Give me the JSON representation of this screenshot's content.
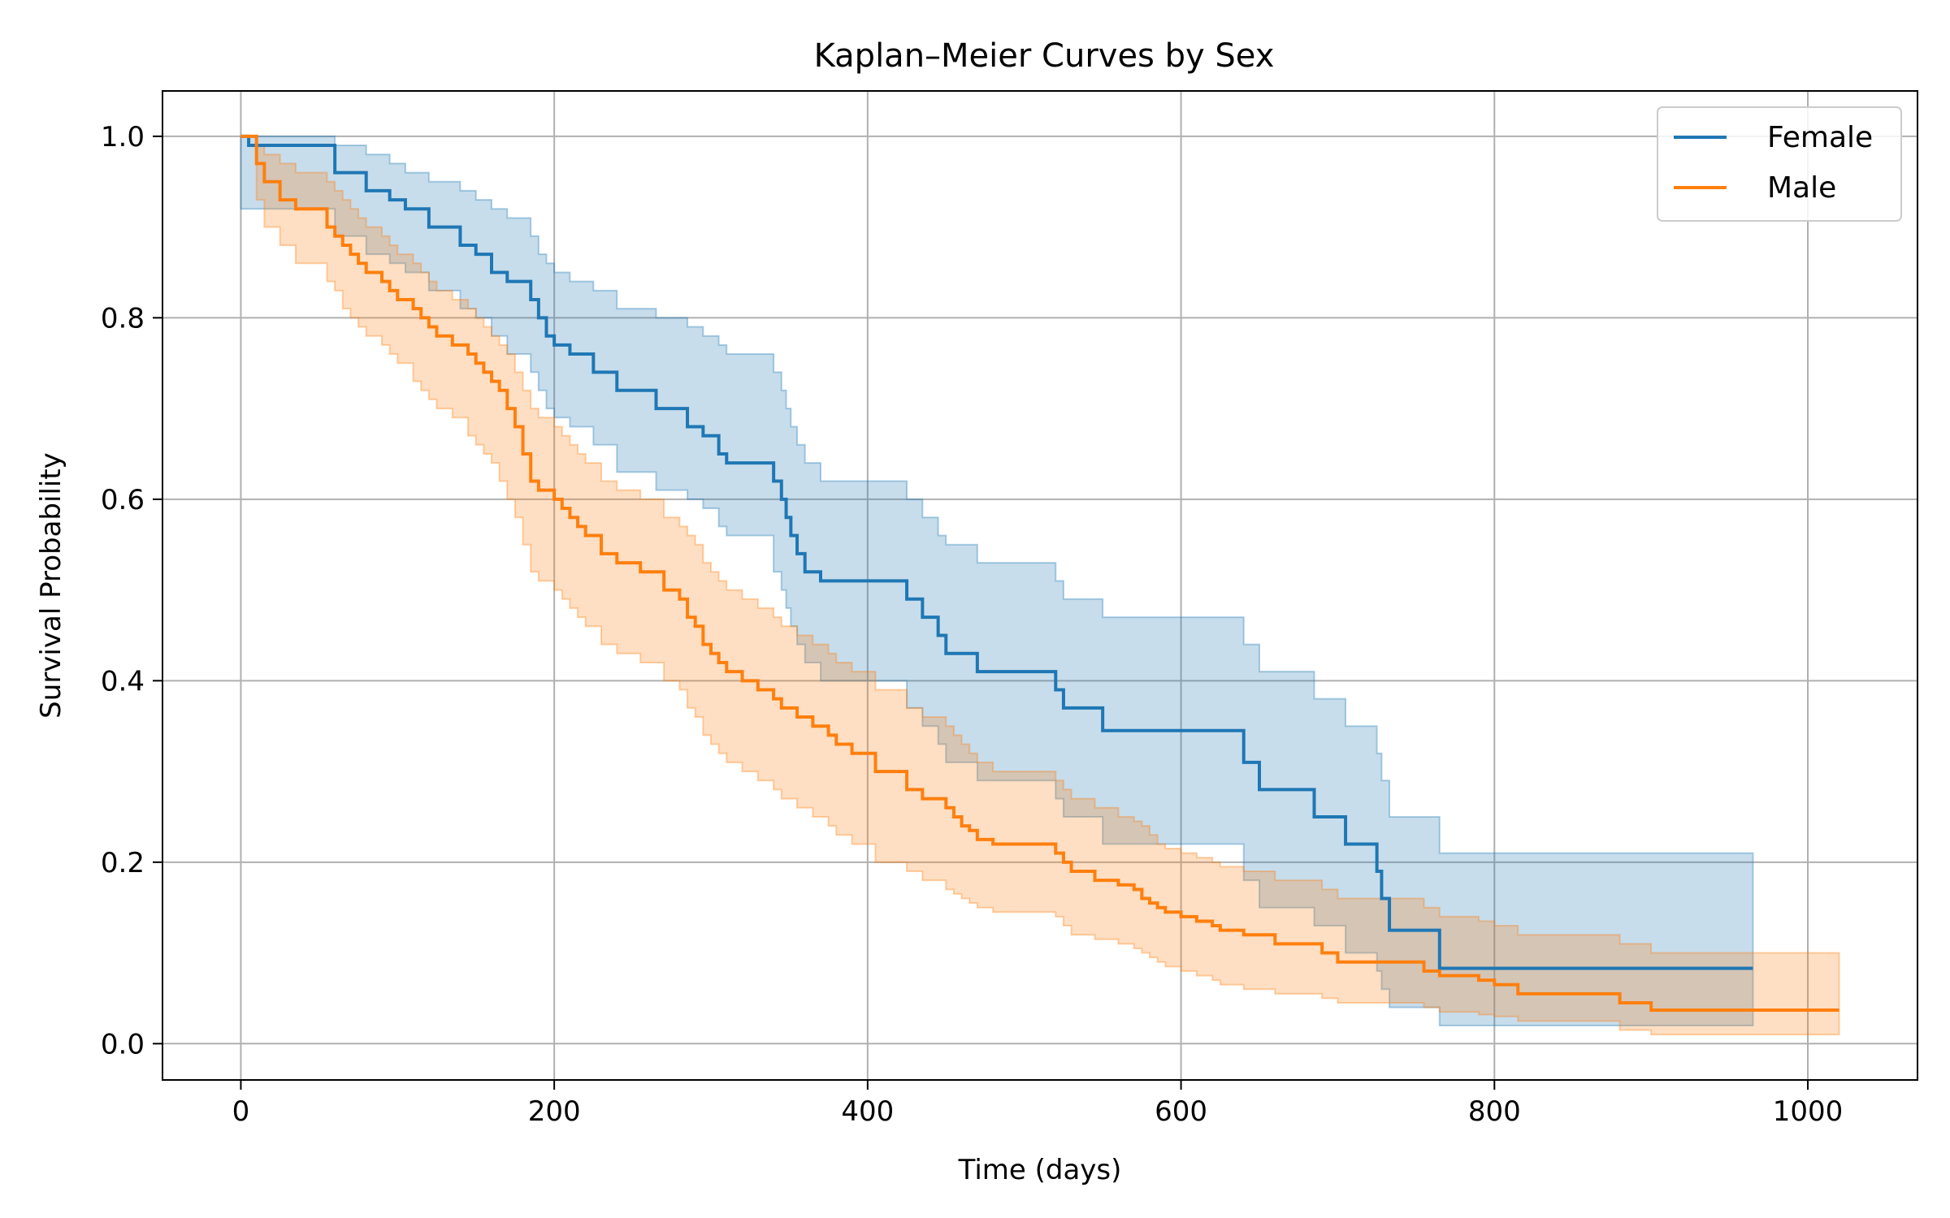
{
  "chart_data": {
    "type": "line",
    "title": "Kaplan–Meier Curves by Sex",
    "xlabel": "Time (days)",
    "ylabel": "Survival Probability",
    "xlim": [
      -50,
      1070
    ],
    "ylim": [
      -0.04,
      1.05
    ],
    "xticks": [
      0,
      200,
      400,
      600,
      800,
      1000
    ],
    "xtick_labels": [
      "0",
      "200",
      "400",
      "600",
      "800",
      "1000"
    ],
    "yticks": [
      0.0,
      0.2,
      0.4,
      0.6,
      0.8,
      1.0
    ],
    "ytick_labels": [
      "0.0",
      "0.2",
      "0.4",
      "0.6",
      "0.8",
      "1.0"
    ],
    "grid": true,
    "legend_position": "top-right",
    "step": "post",
    "series": [
      {
        "name": "Female",
        "color": "#1f77b4",
        "x": [
          0,
          5,
          60,
          80,
          95,
          105,
          120,
          140,
          150,
          160,
          170,
          185,
          190,
          195,
          200,
          210,
          225,
          240,
          265,
          285,
          295,
          305,
          310,
          340,
          345,
          348,
          351,
          355,
          360,
          370,
          425,
          435,
          445,
          450,
          470,
          520,
          525,
          550,
          640,
          650,
          685,
          705,
          725,
          728,
          733,
          765,
          965
        ],
        "y": [
          1.0,
          0.99,
          0.96,
          0.94,
          0.93,
          0.92,
          0.9,
          0.88,
          0.87,
          0.85,
          0.84,
          0.82,
          0.8,
          0.78,
          0.77,
          0.76,
          0.74,
          0.72,
          0.7,
          0.68,
          0.67,
          0.65,
          0.64,
          0.62,
          0.6,
          0.58,
          0.56,
          0.54,
          0.52,
          0.51,
          0.49,
          0.47,
          0.45,
          0.43,
          0.41,
          0.39,
          0.37,
          0.345,
          0.31,
          0.28,
          0.25,
          0.22,
          0.19,
          0.16,
          0.125,
          0.083,
          0.083
        ],
        "ci_lower": [
          0.92,
          0.92,
          0.89,
          0.87,
          0.86,
          0.85,
          0.83,
          0.81,
          0.8,
          0.78,
          0.76,
          0.74,
          0.72,
          0.7,
          0.69,
          0.68,
          0.66,
          0.63,
          0.61,
          0.6,
          0.59,
          0.57,
          0.56,
          0.52,
          0.5,
          0.48,
          0.46,
          0.44,
          0.42,
          0.4,
          0.37,
          0.35,
          0.33,
          0.31,
          0.29,
          0.27,
          0.25,
          0.22,
          0.18,
          0.15,
          0.13,
          0.1,
          0.08,
          0.06,
          0.04,
          0.02,
          0.02
        ],
        "ci_upper": [
          1.0,
          1.0,
          0.99,
          0.98,
          0.97,
          0.96,
          0.95,
          0.94,
          0.93,
          0.92,
          0.91,
          0.89,
          0.87,
          0.86,
          0.85,
          0.84,
          0.83,
          0.81,
          0.8,
          0.79,
          0.78,
          0.77,
          0.76,
          0.74,
          0.72,
          0.7,
          0.68,
          0.66,
          0.64,
          0.62,
          0.6,
          0.58,
          0.56,
          0.55,
          0.53,
          0.51,
          0.49,
          0.47,
          0.44,
          0.41,
          0.38,
          0.35,
          0.32,
          0.29,
          0.25,
          0.21,
          0.21
        ]
      },
      {
        "name": "Male",
        "color": "#ff7f0e",
        "x": [
          0,
          10,
          15,
          25,
          35,
          55,
          60,
          65,
          70,
          75,
          80,
          90,
          95,
          100,
          110,
          115,
          120,
          125,
          135,
          145,
          150,
          155,
          160,
          165,
          170,
          175,
          180,
          185,
          190,
          200,
          205,
          210,
          215,
          220,
          230,
          240,
          255,
          270,
          280,
          285,
          290,
          295,
          300,
          305,
          310,
          320,
          330,
          340,
          345,
          355,
          365,
          375,
          380,
          390,
          405,
          425,
          435,
          450,
          455,
          460,
          465,
          470,
          480,
          520,
          525,
          530,
          545,
          560,
          570,
          575,
          580,
          585,
          590,
          600,
          610,
          620,
          625,
          640,
          660,
          690,
          700,
          755,
          765,
          790,
          800,
          815,
          880,
          900,
          1020
        ],
        "y": [
          1.0,
          0.97,
          0.95,
          0.93,
          0.92,
          0.9,
          0.89,
          0.88,
          0.87,
          0.86,
          0.85,
          0.84,
          0.83,
          0.82,
          0.81,
          0.8,
          0.79,
          0.78,
          0.77,
          0.76,
          0.75,
          0.74,
          0.73,
          0.72,
          0.7,
          0.68,
          0.65,
          0.62,
          0.61,
          0.6,
          0.59,
          0.58,
          0.57,
          0.56,
          0.54,
          0.53,
          0.52,
          0.5,
          0.49,
          0.47,
          0.46,
          0.44,
          0.43,
          0.42,
          0.41,
          0.4,
          0.39,
          0.38,
          0.37,
          0.36,
          0.35,
          0.34,
          0.33,
          0.32,
          0.3,
          0.28,
          0.27,
          0.26,
          0.25,
          0.24,
          0.235,
          0.225,
          0.22,
          0.21,
          0.2,
          0.19,
          0.18,
          0.175,
          0.17,
          0.16,
          0.155,
          0.15,
          0.145,
          0.14,
          0.135,
          0.13,
          0.125,
          0.12,
          0.11,
          0.1,
          0.09,
          0.08,
          0.075,
          0.07,
          0.065,
          0.055,
          0.045,
          0.037,
          0.037
        ],
        "ci_lower": [
          1.0,
          0.93,
          0.9,
          0.88,
          0.86,
          0.84,
          0.83,
          0.81,
          0.8,
          0.79,
          0.78,
          0.77,
          0.76,
          0.75,
          0.73,
          0.72,
          0.71,
          0.7,
          0.69,
          0.67,
          0.66,
          0.65,
          0.64,
          0.62,
          0.6,
          0.58,
          0.55,
          0.52,
          0.51,
          0.5,
          0.49,
          0.48,
          0.47,
          0.46,
          0.44,
          0.43,
          0.42,
          0.4,
          0.39,
          0.37,
          0.36,
          0.34,
          0.33,
          0.32,
          0.31,
          0.3,
          0.29,
          0.28,
          0.27,
          0.26,
          0.25,
          0.24,
          0.23,
          0.22,
          0.2,
          0.19,
          0.18,
          0.17,
          0.165,
          0.16,
          0.155,
          0.15,
          0.145,
          0.14,
          0.13,
          0.12,
          0.115,
          0.11,
          0.105,
          0.1,
          0.095,
          0.09,
          0.085,
          0.08,
          0.075,
          0.07,
          0.065,
          0.06,
          0.055,
          0.05,
          0.045,
          0.04,
          0.035,
          0.032,
          0.03,
          0.025,
          0.015,
          0.01,
          0.01
        ],
        "ci_upper": [
          1.0,
          0.99,
          0.98,
          0.97,
          0.96,
          0.95,
          0.94,
          0.93,
          0.92,
          0.91,
          0.9,
          0.89,
          0.88,
          0.87,
          0.86,
          0.85,
          0.84,
          0.83,
          0.82,
          0.81,
          0.8,
          0.79,
          0.78,
          0.77,
          0.76,
          0.74,
          0.72,
          0.7,
          0.69,
          0.68,
          0.67,
          0.66,
          0.65,
          0.64,
          0.62,
          0.61,
          0.6,
          0.58,
          0.57,
          0.56,
          0.55,
          0.53,
          0.52,
          0.51,
          0.5,
          0.49,
          0.48,
          0.47,
          0.46,
          0.45,
          0.44,
          0.43,
          0.42,
          0.41,
          0.39,
          0.37,
          0.36,
          0.35,
          0.34,
          0.33,
          0.32,
          0.31,
          0.3,
          0.29,
          0.28,
          0.27,
          0.26,
          0.25,
          0.245,
          0.24,
          0.23,
          0.22,
          0.215,
          0.21,
          0.205,
          0.2,
          0.195,
          0.19,
          0.18,
          0.17,
          0.16,
          0.15,
          0.14,
          0.135,
          0.13,
          0.12,
          0.11,
          0.1,
          0.1
        ]
      }
    ]
  }
}
